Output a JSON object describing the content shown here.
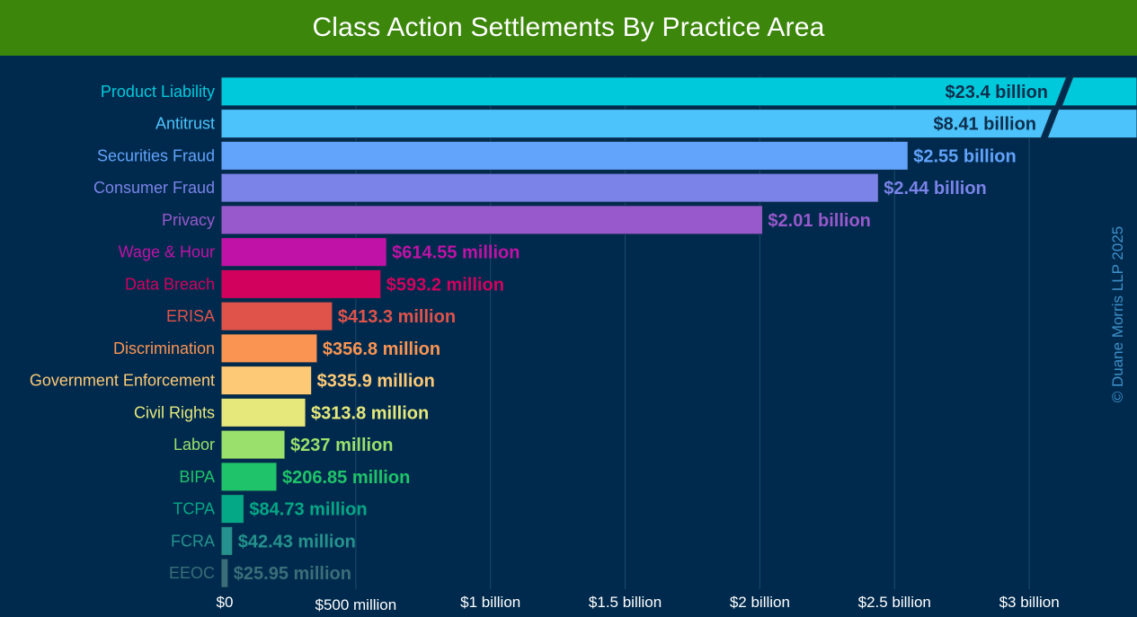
{
  "title": "Class Action Settlements By Practice Area",
  "watermark": "© Duane Morris LLP 2025",
  "chart_data": {
    "type": "bar",
    "orientation": "horizontal",
    "title": "Class Action Settlements By Practice Area",
    "xlabel": "",
    "ylabel": "",
    "xlim": [
      0,
      3400000000
    ],
    "axis_break": true,
    "grid": "vertical",
    "ticks": [
      {
        "value": 0,
        "label": "$0"
      },
      {
        "value": 500000000,
        "label": "$500 million"
      },
      {
        "value": 1000000000,
        "label": "$1 billion"
      },
      {
        "value": 1500000000,
        "label": "$1.5 billion"
      },
      {
        "value": 2000000000,
        "label": "$2 billion"
      },
      {
        "value": 2500000000,
        "label": "$2.5 billion"
      },
      {
        "value": 3000000000,
        "label": "$3 billion"
      }
    ],
    "bars": [
      {
        "category": "Product Liability",
        "value": 23400000000,
        "label": "$23.4 billion",
        "color": "#00c9dc",
        "broken": true
      },
      {
        "category": "Antitrust",
        "value": 8410000000,
        "label": "$8.41 billion",
        "color": "#4cc3fb",
        "broken": true
      },
      {
        "category": "Securities Fraud",
        "value": 2550000000,
        "label": "$2.55 billion",
        "color": "#62a3fb"
      },
      {
        "category": "Consumer Fraud",
        "value": 2440000000,
        "label": "$2.44 billion",
        "color": "#7b83e9"
      },
      {
        "category": "Privacy",
        "value": 2010000000,
        "label": "$2.01 billion",
        "color": "#9859cc"
      },
      {
        "category": "Wage & Hour",
        "value": 614550000,
        "label": "$614.55 million",
        "color": "#c012a6"
      },
      {
        "category": "Data Breach",
        "value": 593200000,
        "label": "$593.2 million",
        "color": "#d2015e"
      },
      {
        "category": "ERISA",
        "value": 413300000,
        "label": "$413.3 million",
        "color": "#e0534b"
      },
      {
        "category": "Discrimination",
        "value": 356800000,
        "label": "$356.8 million",
        "color": "#fa9453"
      },
      {
        "category": "Government Enforcement",
        "value": 335900000,
        "label": "$335.9 million",
        "color": "#fdc977"
      },
      {
        "category": "Civil Rights",
        "value": 313800000,
        "label": "$313.8 million",
        "color": "#e6e87c"
      },
      {
        "category": "Labor",
        "value": 237000000,
        "label": "$237 million",
        "color": "#9ae06c"
      },
      {
        "category": "BIPA",
        "value": 206850000,
        "label": "$206.85 million",
        "color": "#1fc46a"
      },
      {
        "category": "TCPA",
        "value": 84730000,
        "label": "$84.73 million",
        "color": "#04a786"
      },
      {
        "category": "FCRA",
        "value": 42430000,
        "label": "$42.43 million",
        "color": "#25928d"
      },
      {
        "category": "EEOC",
        "value": 25950000,
        "label": "$25.95 million",
        "color": "#3a6f79"
      }
    ]
  }
}
